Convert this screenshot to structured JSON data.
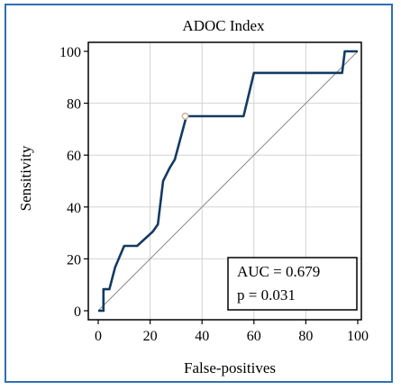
{
  "chart_data": {
    "type": "line",
    "title": "ADOC Index",
    "xlabel": "False-positives",
    "ylabel": "Sensitivity",
    "xlim": [
      0,
      100
    ],
    "ylim": [
      0,
      100
    ],
    "xticks": [
      0,
      20,
      40,
      60,
      80,
      100
    ],
    "yticks": [
      0,
      20,
      40,
      60,
      80,
      100
    ],
    "grid": true,
    "series": [
      {
        "values": [
          [
            0,
            0
          ],
          [
            2,
            0
          ],
          [
            2,
            8.3
          ],
          [
            4.3,
            8.3
          ],
          [
            6.5,
            16.7
          ],
          [
            10,
            25
          ],
          [
            15,
            25
          ],
          [
            21,
            30.5
          ],
          [
            23,
            33.3
          ],
          [
            25,
            50
          ],
          [
            27.5,
            55
          ],
          [
            29.5,
            58.3
          ],
          [
            34,
            75
          ],
          [
            45,
            75
          ],
          [
            56,
            75
          ],
          [
            60,
            91.7
          ],
          [
            94,
            91.7
          ],
          [
            95,
            100
          ],
          [
            100,
            100
          ]
        ]
      }
    ],
    "reference_line": [
      [
        0,
        0
      ],
      [
        100,
        100
      ]
    ],
    "optimal_point": [
      33.5,
      75
    ],
    "annotations": {
      "auc": "AUC = 0.679",
      "p": "p = 0.031"
    },
    "colors": {
      "curve": "#123a63",
      "reference": "#8a8a8a",
      "grid": "#d3d3d3",
      "frame": "#2f6fb5",
      "marker": "#c9b99a"
    }
  }
}
